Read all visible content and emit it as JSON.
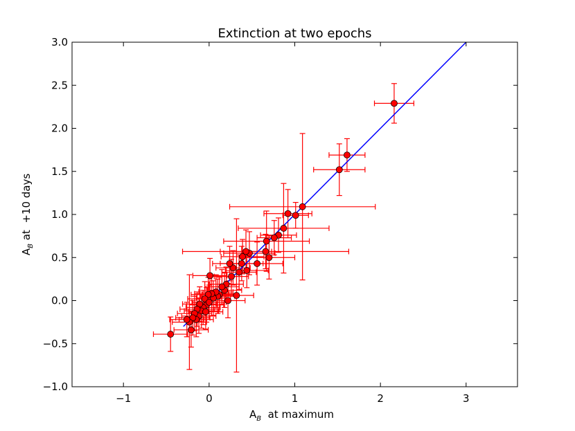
{
  "chart_data": {
    "type": "scatter",
    "title": "Extinction at two epochs",
    "xlabel": {
      "main": "A",
      "sub": "B",
      "rest": "  at maximum"
    },
    "ylabel": {
      "main": "A",
      "sub": "B",
      "rest": " at  +10 days"
    },
    "xlim": [
      -1.6,
      3.6
    ],
    "ylim": [
      -1.0,
      3.0
    ],
    "x_ticks": [
      "−1",
      "0",
      "1",
      "2",
      "3"
    ],
    "x_tick_values": [
      -1,
      0,
      1,
      2,
      3
    ],
    "y_ticks": [
      "−1.0",
      "−0.5",
      "0.0",
      "0.5",
      "1.0",
      "1.5",
      "2.0",
      "2.5",
      "3.0"
    ],
    "y_tick_values": [
      -1.0,
      -0.5,
      0.0,
      0.5,
      1.0,
      1.5,
      2.0,
      2.5,
      3.0
    ],
    "colors": {
      "points": "#ff0000",
      "errorbars": "#ff0000",
      "line": "#0000ff",
      "point_edge": "#000000"
    },
    "fit_line": {
      "x": [
        -0.3,
        3.0
      ],
      "y": [
        -0.3,
        3.0
      ]
    },
    "points": [
      {
        "x": 2.16,
        "y": 2.29,
        "xerr": 0.23,
        "yerr": 0.23
      },
      {
        "x": 1.61,
        "y": 1.69,
        "xerr": 0.21,
        "yerr": 0.19
      },
      {
        "x": 1.52,
        "y": 1.52,
        "xerr": 0.3,
        "yerr": 0.3
      },
      {
        "x": 1.09,
        "y": 1.09,
        "xerr": 0.85,
        "yerr": 0.85
      },
      {
        "x": 1.01,
        "y": 0.99,
        "xerr": 0.15,
        "yerr": 0.15
      },
      {
        "x": 0.92,
        "y": 1.01,
        "xerr": 0.28,
        "yerr": 0.28
      },
      {
        "x": 0.87,
        "y": 0.84,
        "xerr": 0.53,
        "yerr": 0.52
      },
      {
        "x": 0.81,
        "y": 0.76,
        "xerr": 0.21,
        "yerr": 0.2
      },
      {
        "x": 0.76,
        "y": 0.73,
        "xerr": 0.2,
        "yerr": 0.2
      },
      {
        "x": 0.67,
        "y": 0.69,
        "xerr": 0.5,
        "yerr": 0.35
      },
      {
        "x": 0.66,
        "y": 0.57,
        "xerr": 0.97,
        "yerr": 0.2
      },
      {
        "x": 0.7,
        "y": 0.5,
        "xerr": 0.3,
        "yerr": 0.25
      },
      {
        "x": 0.56,
        "y": 0.43,
        "xerr": 0.3,
        "yerr": 0.25
      },
      {
        "x": 0.47,
        "y": 0.55,
        "xerr": 0.3,
        "yerr": 0.25
      },
      {
        "x": 0.43,
        "y": 0.57,
        "xerr": 0.3,
        "yerr": 0.25
      },
      {
        "x": 0.39,
        "y": 0.51,
        "xerr": 0.25,
        "yerr": 0.2
      },
      {
        "x": 0.38,
        "y": 0.43,
        "xerr": 0.25,
        "yerr": 0.2
      },
      {
        "x": 0.44,
        "y": 0.35,
        "xerr": 0.25,
        "yerr": 0.2
      },
      {
        "x": 0.35,
        "y": 0.33,
        "xerr": 0.2,
        "yerr": 0.2
      },
      {
        "x": 0.32,
        "y": 0.06,
        "xerr": 0.2,
        "yerr": 0.89
      },
      {
        "x": 0.28,
        "y": 0.38,
        "xerr": 0.2,
        "yerr": 0.2
      },
      {
        "x": 0.24,
        "y": 0.43,
        "xerr": 0.2,
        "yerr": 0.2
      },
      {
        "x": 0.26,
        "y": 0.28,
        "xerr": 0.2,
        "yerr": 0.2
      },
      {
        "x": 0.2,
        "y": 0.19,
        "xerr": 0.2,
        "yerr": 0.2
      },
      {
        "x": 0.18,
        "y": 0.12,
        "xerr": 0.2,
        "yerr": 0.2
      },
      {
        "x": 0.15,
        "y": 0.16,
        "xerr": 0.2,
        "yerr": 0.2
      },
      {
        "x": 0.12,
        "y": 0.07,
        "xerr": 0.2,
        "yerr": 0.2
      },
      {
        "x": 0.1,
        "y": 0.05,
        "xerr": 0.2,
        "yerr": 0.2
      },
      {
        "x": 0.08,
        "y": 0.1,
        "xerr": 0.2,
        "yerr": 0.2
      },
      {
        "x": 0.05,
        "y": 0.03,
        "xerr": 0.2,
        "yerr": 0.2
      },
      {
        "x": 0.03,
        "y": 0.08,
        "xerr": 0.2,
        "yerr": 0.2
      },
      {
        "x": 0.01,
        "y": 0.29,
        "xerr": 0.2,
        "yerr": 0.2
      },
      {
        "x": -0.01,
        "y": 0.07,
        "xerr": 0.2,
        "yerr": 0.2
      },
      {
        "x": -0.03,
        "y": -0.05,
        "xerr": 0.2,
        "yerr": 0.2
      },
      {
        "x": -0.05,
        "y": 0.02,
        "xerr": 0.2,
        "yerr": 0.2
      },
      {
        "x": -0.07,
        "y": -0.08,
        "xerr": 0.2,
        "yerr": 0.2
      },
      {
        "x": -0.09,
        "y": -0.12,
        "xerr": 0.2,
        "yerr": 0.2
      },
      {
        "x": -0.11,
        "y": -0.04,
        "xerr": 0.2,
        "yerr": 0.2
      },
      {
        "x": -0.12,
        "y": -0.18,
        "xerr": 0.2,
        "yerr": 0.2
      },
      {
        "x": -0.14,
        "y": -0.1,
        "xerr": 0.2,
        "yerr": 0.2
      },
      {
        "x": -0.15,
        "y": -0.22,
        "xerr": 0.2,
        "yerr": 0.2
      },
      {
        "x": -0.17,
        "y": -0.15,
        "xerr": 0.2,
        "yerr": 0.2
      },
      {
        "x": -0.19,
        "y": -0.2,
        "xerr": 0.2,
        "yerr": 0.2
      },
      {
        "x": -0.21,
        "y": -0.34,
        "xerr": 0.2,
        "yerr": 0.2
      },
      {
        "x": -0.23,
        "y": -0.25,
        "xerr": 0.2,
        "yerr": 0.55
      },
      {
        "x": -0.26,
        "y": -0.22,
        "xerr": 0.2,
        "yerr": 0.2
      },
      {
        "x": -0.04,
        "y": -0.13,
        "xerr": 0.2,
        "yerr": 0.2
      },
      {
        "x": 0.0,
        "y": -0.02,
        "xerr": 0.2,
        "yerr": 0.2
      },
      {
        "x": -0.45,
        "y": -0.39,
        "xerr": 0.2,
        "yerr": 0.2
      },
      {
        "x": 0.22,
        "y": 0.0,
        "xerr": 0.2,
        "yerr": 0.2
      }
    ]
  }
}
